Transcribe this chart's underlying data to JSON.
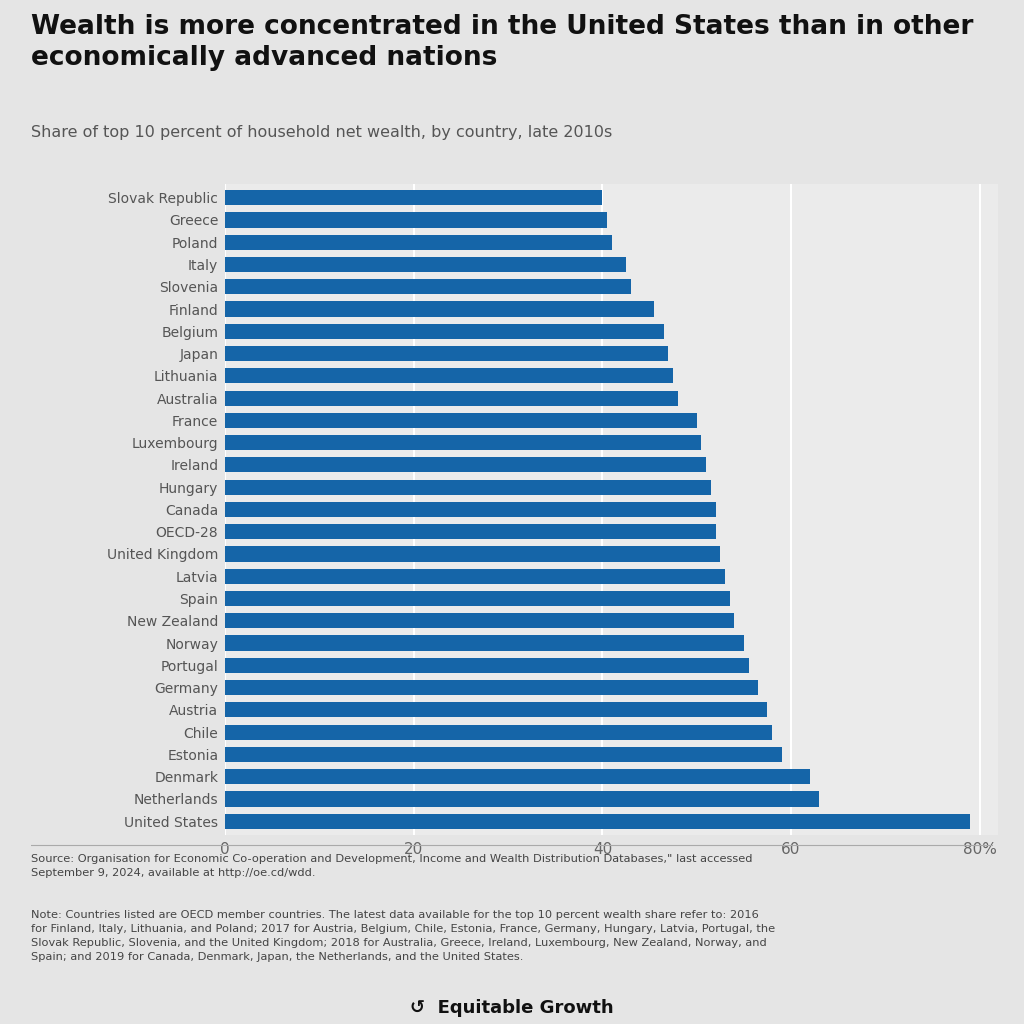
{
  "title_line1": "Wealth is more concentrated in the United States than in other",
  "title_line2": "economically advanced nations",
  "subtitle": "Share of top 10 percent of household net wealth, by country, late 2010s",
  "countries": [
    "Slovak Republic",
    "Greece",
    "Poland",
    "Italy",
    "Slovenia",
    "Finland",
    "Belgium",
    "Japan",
    "Lithuania",
    "Australia",
    "France",
    "Luxembourg",
    "Ireland",
    "Hungary",
    "Canada",
    "OECD-28",
    "United Kingdom",
    "Latvia",
    "Spain",
    "New Zealand",
    "Norway",
    "Portugal",
    "Germany",
    "Austria",
    "Chile",
    "Estonia",
    "Denmark",
    "Netherlands",
    "United States"
  ],
  "values": [
    40.0,
    40.5,
    41.0,
    42.5,
    43.0,
    45.5,
    46.5,
    47.0,
    47.5,
    48.0,
    50.0,
    50.5,
    51.0,
    51.5,
    52.0,
    52.0,
    52.5,
    53.0,
    53.5,
    54.0,
    55.0,
    55.5,
    56.5,
    57.5,
    58.0,
    59.0,
    62.0,
    63.0,
    79.0
  ],
  "bar_color": "#1565a8",
  "background_color": "#e5e5e5",
  "plot_bg_color": "#ebebeb",
  "text_color": "#333333",
  "source_text": "Source: Organisation for Economic Co-operation and Development, Income and Wealth Distribution Databases,\" last accessed\nSeptember 9, 2024, available at http://oe.cd/wdd.",
  "note_text": "Note: Countries listed are OECD member countries. The latest data available for the top 10 percent wealth share refer to: 2016\nfor Finland, Italy, Lithuania, and Poland; 2017 for Austria, Belgium, Chile, Estonia, France, Germany, Hungary, Latvia, Portugal, the\nSlovak Republic, Slovenia, and the United Kingdom; 2018 for Australia, Greece, Ireland, Luxembourg, New Zealand, Norway, and\nSpain; and 2019 for Canada, Denmark, Japan, the Netherlands, and the United States.",
  "xlim": [
    0,
    82
  ],
  "xticks": [
    0,
    20,
    40,
    60,
    80
  ],
  "xtick_labels": [
    "0",
    "20",
    "40",
    "60",
    "80%"
  ]
}
